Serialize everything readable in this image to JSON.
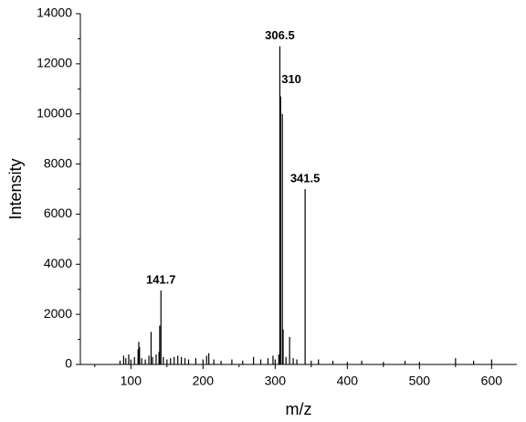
{
  "chart_data": {
    "type": "stem",
    "x_label": "m/z",
    "y_label": "Intensity",
    "color": "#000000",
    "x": [
      85,
      90,
      93,
      97,
      100,
      105,
      110,
      111,
      112,
      115,
      120,
      125,
      128,
      130,
      135,
      139,
      140,
      141.7,
      145,
      150,
      155,
      160,
      165,
      170,
      175,
      180,
      190,
      200,
      205,
      208,
      215,
      225,
      240,
      255,
      270,
      280,
      290,
      297,
      300,
      305,
      306.5,
      307.5,
      310,
      311,
      315,
      320,
      325,
      330,
      341.5,
      350,
      360,
      380,
      400,
      420,
      450,
      480,
      500,
      550,
      575,
      600
    ],
    "values": [
      150,
      350,
      250,
      400,
      200,
      300,
      600,
      900,
      700,
      250,
      200,
      350,
      1300,
      300,
      400,
      500,
      1550,
      2950,
      300,
      200,
      250,
      300,
      350,
      300,
      250,
      200,
      250,
      200,
      350,
      450,
      200,
      150,
      200,
      150,
      300,
      200,
      250,
      350,
      200,
      400,
      12700,
      10700,
      10000,
      1400,
      300,
      1100,
      250,
      200,
      7000,
      150,
      200,
      150,
      100,
      150,
      100,
      150,
      100,
      250,
      150,
      200
    ],
    "annotations": [
      {
        "text": "306.5",
        "x": 306.5
      },
      {
        "text": "310",
        "x": 310
      },
      {
        "text": "341.5",
        "x": 341.5
      },
      {
        "text": "141.7",
        "x": 141.7
      }
    ],
    "xlim": [
      30,
      635
    ],
    "ylim": [
      0,
      14000
    ],
    "xticks": [
      100,
      200,
      300,
      400,
      500,
      600
    ],
    "xminorticks": [
      50,
      150,
      250,
      350,
      450,
      550
    ],
    "yticks": [
      0,
      2000,
      4000,
      6000,
      8000,
      10000,
      12000,
      14000
    ],
    "yminorticks": [
      1000,
      3000,
      5000,
      7000,
      9000,
      11000,
      13000
    ]
  }
}
